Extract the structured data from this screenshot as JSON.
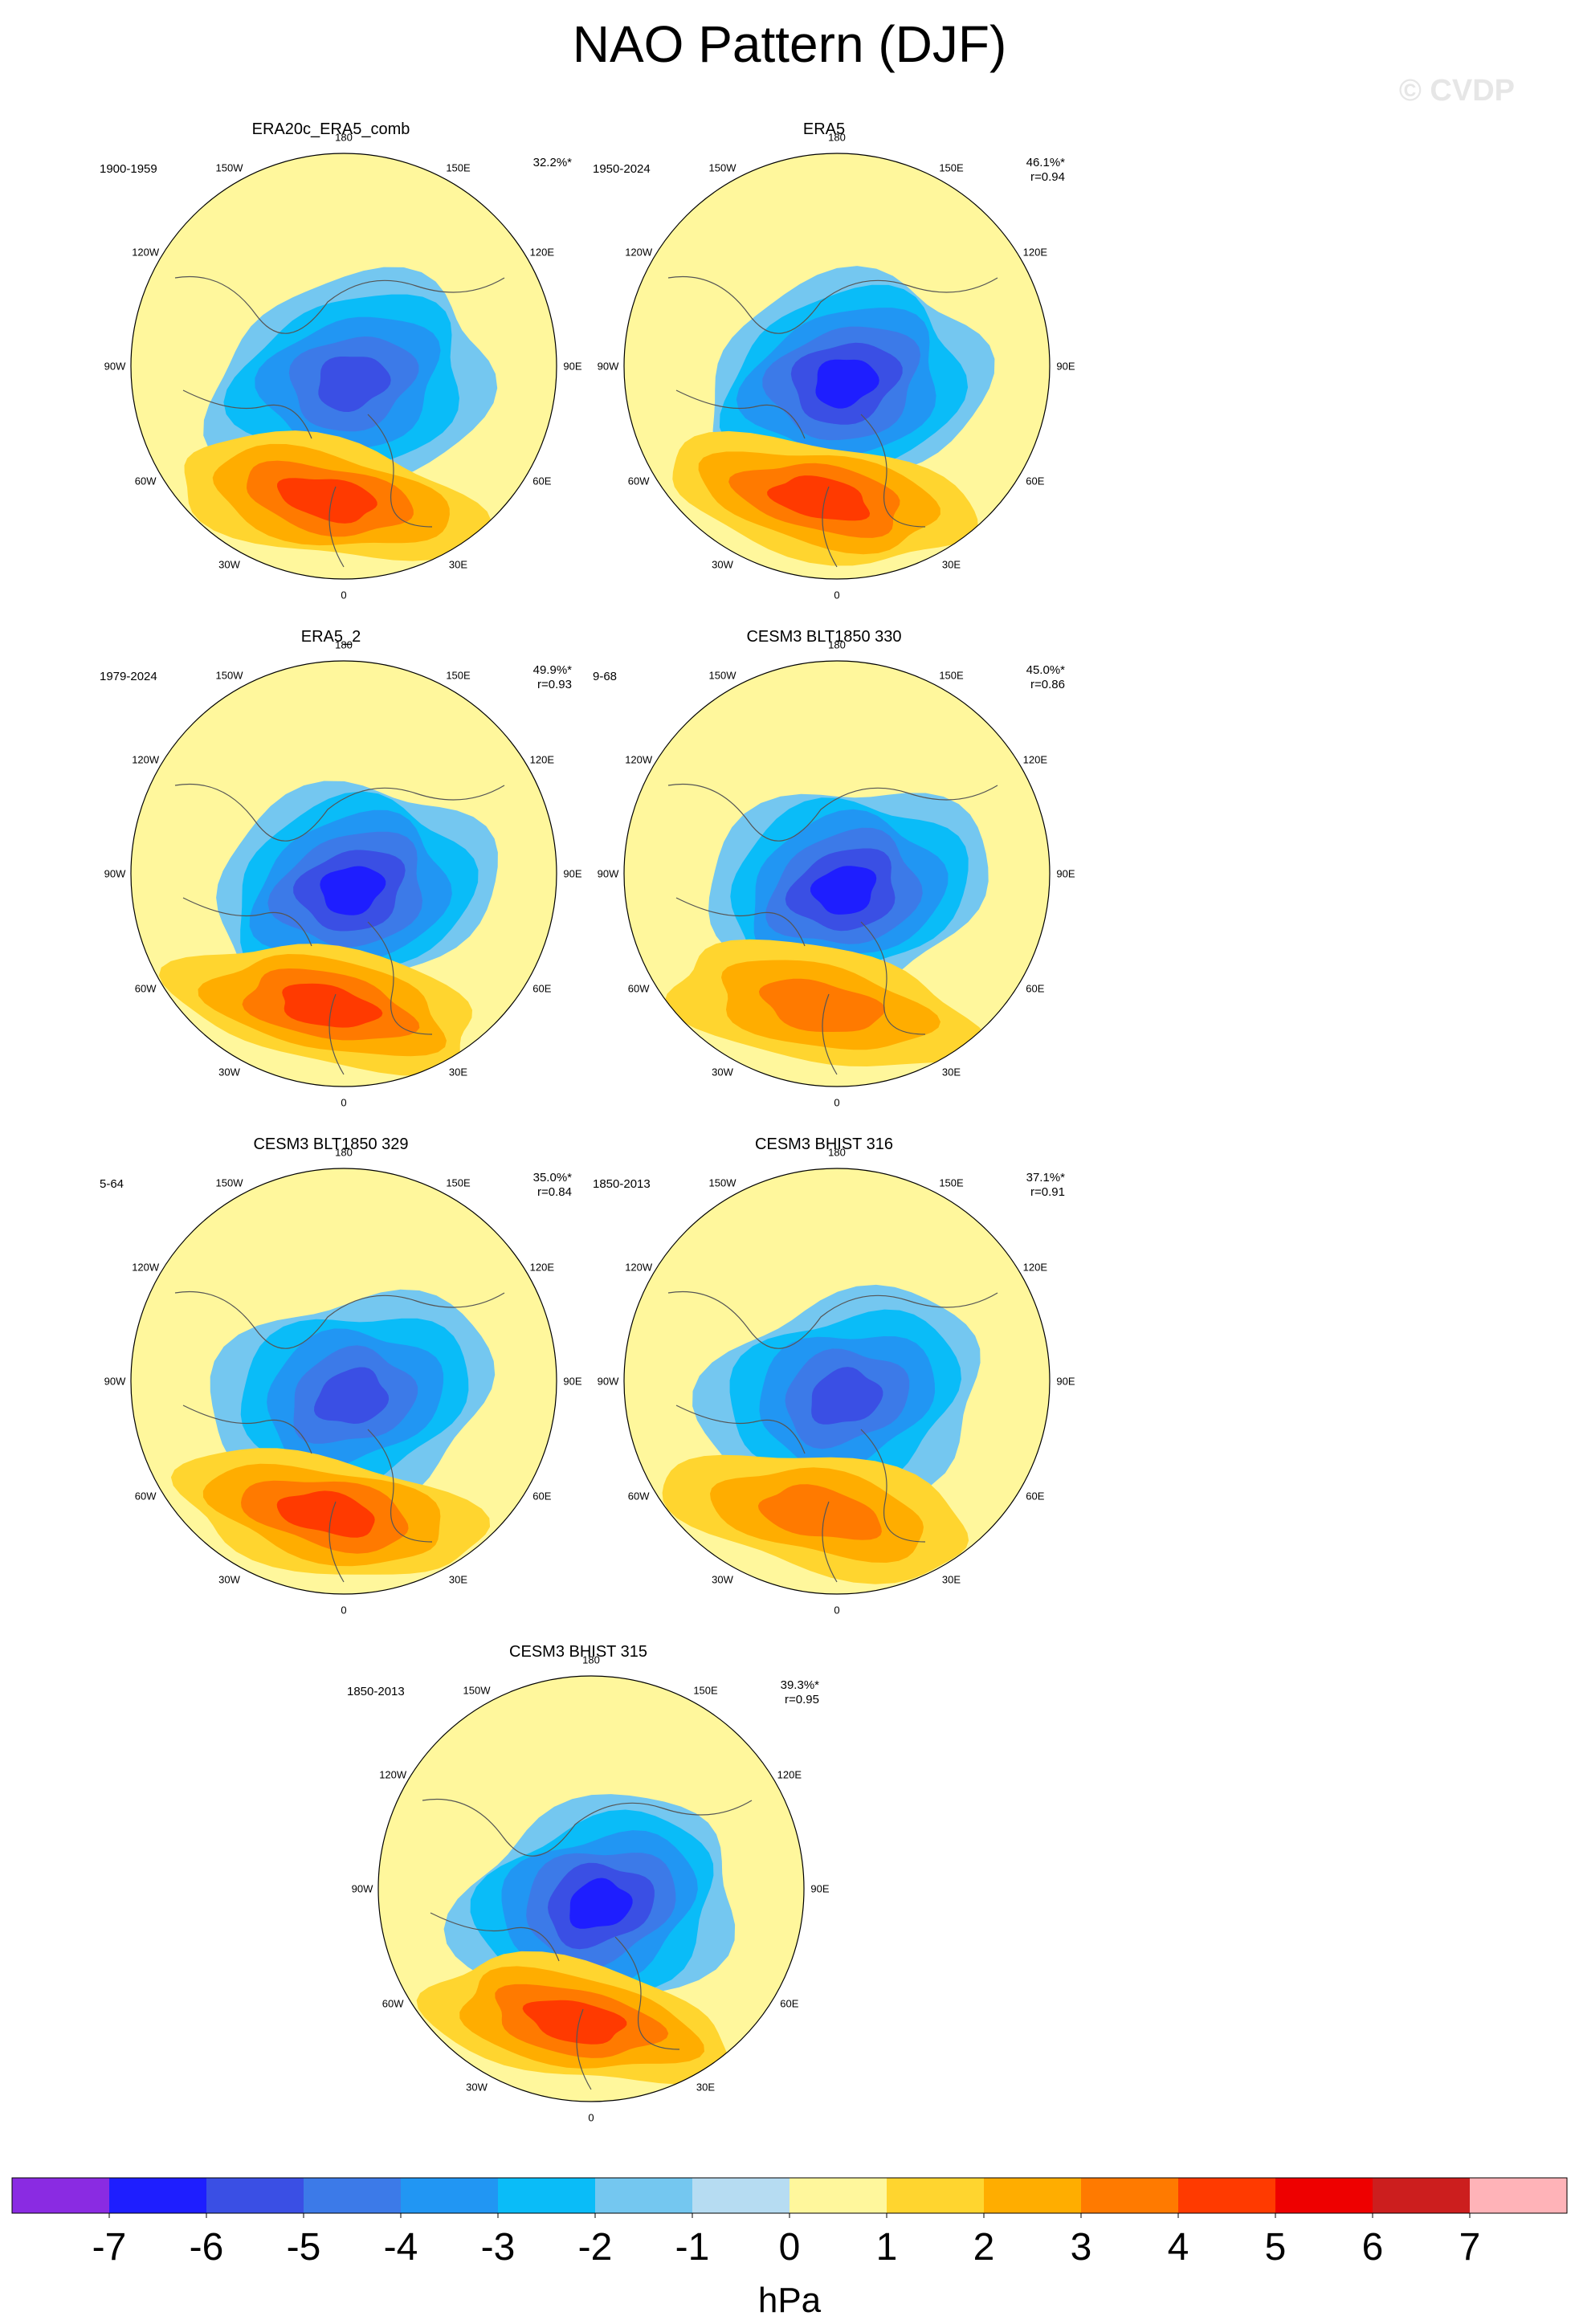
{
  "page": {
    "title": "NAO Pattern (DJF)",
    "watermark": "© CVDP"
  },
  "chart_data": {
    "type": "polar-contour-map-panels",
    "variable": "sea level pressure regression (NAO)",
    "units": "hPa",
    "longitude_labels": [
      "180",
      "150E",
      "120E",
      "90E",
      "60E",
      "30E",
      "0",
      "30W",
      "60W",
      "90W",
      "120W",
      "150W"
    ],
    "colorbar": {
      "levels": [
        -7,
        -6,
        -5,
        -4,
        -3,
        -2,
        -1,
        0,
        1,
        2,
        3,
        4,
        5,
        6,
        7
      ],
      "tick_labels": [
        "-7",
        "-6",
        "-5",
        "-4",
        "-3",
        "-2",
        "-1",
        "0",
        "1",
        "2",
        "3",
        "4",
        "5",
        "6",
        "7"
      ],
      "colors": [
        "#8a2be2",
        "#1e1eff",
        "#3a4fe4",
        "#3c7ae8",
        "#2196f3",
        "#0abcf8",
        "#74c7f0",
        "#b6dcf2",
        "#fff79c",
        "#ffd52f",
        "#ffad00",
        "#ff7a00",
        "#ff3a00",
        "#ee0000",
        "#cc1e1e",
        "#ffb3b8"
      ],
      "label": "hPa"
    },
    "panels": [
      {
        "name": "ERA20c_ERA5_comb",
        "period": "1900-1959",
        "variance": "32.2%*",
        "r": "",
        "low_min": -5,
        "high_max": 4
      },
      {
        "name": "ERA5",
        "period": "1950-2024",
        "variance": "46.1%*",
        "r": "r=0.94",
        "low_min": -6,
        "high_max": 4
      },
      {
        "name": "ERA5_2",
        "period": "1979-2024",
        "variance": "49.9%*",
        "r": "r=0.93",
        "low_min": -6,
        "high_max": 4
      },
      {
        "name": "CESM3 BLT1850 330",
        "period": "9-68",
        "variance": "45.0%*",
        "r": "r=0.86",
        "low_min": -6,
        "high_max": 3
      },
      {
        "name": "CESM3 BLT1850 329",
        "period": "5-64",
        "variance": "35.0%*",
        "r": "r=0.84",
        "low_min": -5,
        "high_max": 4
      },
      {
        "name": "CESM3 BHIST 316",
        "period": "1850-2013",
        "variance": "37.1%*",
        "r": "r=0.91",
        "low_min": -5,
        "high_max": 3
      },
      {
        "name": "CESM3 BHIST 315",
        "period": "1850-2013",
        "variance": "39.3%*",
        "r": "r=0.95",
        "low_min": -6,
        "high_max": 4
      }
    ]
  }
}
